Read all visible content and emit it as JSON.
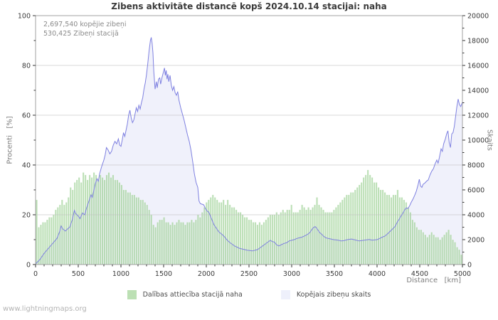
{
  "page": {
    "annotations": [
      "2,697,540 kopējie zibeņi",
      "530,425 Zibeņi stacijā"
    ],
    "footer": "www.lightningmaps.org"
  },
  "colors": {
    "title_text": "#3b3b3b",
    "tick_text": "#3a3a3a",
    "axis_line": "#a0a0a0",
    "grid_line": "#bdbdbd",
    "bar_fill": "rgba(141,201,131,0.60)",
    "bar_edge": "rgba(255,255,255,0.45)",
    "count_fill": "#f0f1fb",
    "count_line": "#7e80e0",
    "legend_bar_swatch": "#bce0b4",
    "legend_count_swatch": "#eef0fb"
  },
  "chart_data": {
    "type": "bar",
    "title": "Zibens aktivitāte distancē kopš 2024.10.14 stacijai: naha",
    "x_axis": {
      "label": "Distance   [km]",
      "min": 0,
      "max": 5000,
      "major_ticks": [
        0,
        500,
        1000,
        1500,
        2000,
        2500,
        3000,
        3500,
        4000,
        4500,
        5000
      ],
      "minor_step": 100
    },
    "y_left": {
      "label": "Procenti   [%]",
      "min": 0,
      "max": 100,
      "major_ticks": [
        0,
        20,
        40,
        60,
        80,
        100
      ],
      "minor_step": 10,
      "gridlines": [
        20,
        40,
        60,
        80
      ]
    },
    "y_right": {
      "label": "Skaits",
      "min": 0,
      "max": 20000,
      "major_ticks": [
        0,
        2000,
        4000,
        6000,
        8000,
        10000,
        12000,
        14000,
        16000,
        18000,
        20000
      ],
      "minor_step": 1000
    },
    "series": [
      {
        "name": "Dalības attiecība stacijā naha",
        "type": "bar",
        "axis": "left",
        "unit": "%",
        "x_start": 0,
        "x_end": 5000,
        "values": [
          26,
          15,
          16,
          17,
          17,
          18,
          19,
          19,
          20,
          22,
          23,
          24,
          26,
          24,
          25,
          27,
          31,
          30,
          33,
          34,
          35,
          33,
          37,
          36,
          34,
          36,
          35,
          37,
          36,
          34,
          36,
          35,
          34,
          36,
          37,
          35,
          36,
          34,
          34,
          33,
          32,
          30,
          30,
          29,
          29,
          28,
          28,
          27,
          27,
          26,
          26,
          25,
          24,
          22,
          20,
          16,
          15,
          17,
          18,
          18,
          19,
          17,
          17,
          16,
          17,
          16,
          17,
          18,
          17,
          17,
          16,
          17,
          17,
          18,
          17,
          18,
          20,
          19,
          21,
          23,
          25,
          26,
          27,
          28,
          27,
          26,
          25,
          25,
          26,
          24,
          26,
          24,
          23,
          23,
          22,
          21,
          21,
          20,
          19,
          19,
          18,
          18,
          17,
          17,
          16,
          17,
          16,
          17,
          18,
          19,
          20,
          20,
          20,
          21,
          20,
          21,
          22,
          21,
          22,
          22,
          24,
          21,
          21,
          21,
          22,
          24,
          23,
          22,
          23,
          22,
          23,
          24,
          27,
          24,
          23,
          22,
          21,
          21,
          21,
          21,
          22,
          23,
          24,
          25,
          26,
          27,
          28,
          28,
          29,
          29,
          30,
          31,
          32,
          33,
          35,
          36,
          38,
          36,
          35,
          33,
          33,
          31,
          30,
          30,
          29,
          28,
          28,
          27,
          28,
          28,
          30,
          27,
          27,
          26,
          25,
          23,
          21,
          18,
          17,
          15,
          14,
          14,
          13,
          12,
          11,
          12,
          13,
          12,
          11,
          11,
          10,
          11,
          12,
          13,
          14,
          12,
          10,
          9,
          7,
          6,
          4
        ]
      },
      {
        "name": "Kopējais zibeņu skaits",
        "type": "area-line",
        "axis": "right",
        "unit": "count",
        "points": [
          [
            0,
            50
          ],
          [
            50,
            400
          ],
          [
            100,
            900
          ],
          [
            150,
            1300
          ],
          [
            200,
            1700
          ],
          [
            250,
            2100
          ],
          [
            280,
            2600
          ],
          [
            300,
            3100
          ],
          [
            320,
            2850
          ],
          [
            350,
            2700
          ],
          [
            380,
            2900
          ],
          [
            400,
            3000
          ],
          [
            430,
            3600
          ],
          [
            455,
            4350
          ],
          [
            470,
            4100
          ],
          [
            500,
            3900
          ],
          [
            520,
            3700
          ],
          [
            550,
            4150
          ],
          [
            575,
            4000
          ],
          [
            600,
            4600
          ],
          [
            625,
            5100
          ],
          [
            650,
            5600
          ],
          [
            665,
            5400
          ],
          [
            700,
            6500
          ],
          [
            720,
            6900
          ],
          [
            735,
            6700
          ],
          [
            750,
            7300
          ],
          [
            775,
            7900
          ],
          [
            800,
            8400
          ],
          [
            815,
            8800
          ],
          [
            830,
            9400
          ],
          [
            850,
            9200
          ],
          [
            870,
            8900
          ],
          [
            890,
            9100
          ],
          [
            910,
            9600
          ],
          [
            930,
            9900
          ],
          [
            950,
            9700
          ],
          [
            970,
            10100
          ],
          [
            985,
            9600
          ],
          [
            1000,
            9500
          ],
          [
            1015,
            10000
          ],
          [
            1030,
            10600
          ],
          [
            1045,
            10300
          ],
          [
            1060,
            10800
          ],
          [
            1075,
            11300
          ],
          [
            1090,
            12000
          ],
          [
            1105,
            12400
          ],
          [
            1120,
            11800
          ],
          [
            1135,
            11400
          ],
          [
            1150,
            11600
          ],
          [
            1165,
            12100
          ],
          [
            1180,
            12600
          ],
          [
            1195,
            12300
          ],
          [
            1210,
            12800
          ],
          [
            1225,
            12500
          ],
          [
            1240,
            13000
          ],
          [
            1255,
            13400
          ],
          [
            1270,
            14100
          ],
          [
            1285,
            14600
          ],
          [
            1300,
            15300
          ],
          [
            1315,
            16200
          ],
          [
            1330,
            17200
          ],
          [
            1345,
            18000
          ],
          [
            1355,
            18250
          ],
          [
            1365,
            17800
          ],
          [
            1375,
            17000
          ],
          [
            1385,
            15500
          ],
          [
            1400,
            14100
          ],
          [
            1415,
            14700
          ],
          [
            1425,
            14200
          ],
          [
            1440,
            14900
          ],
          [
            1455,
            15000
          ],
          [
            1465,
            14500
          ],
          [
            1480,
            15000
          ],
          [
            1495,
            15400
          ],
          [
            1510,
            15800
          ],
          [
            1520,
            15200
          ],
          [
            1530,
            15600
          ],
          [
            1540,
            14900
          ],
          [
            1550,
            15300
          ],
          [
            1560,
            14700
          ],
          [
            1575,
            15200
          ],
          [
            1590,
            14400
          ],
          [
            1605,
            14000
          ],
          [
            1620,
            14300
          ],
          [
            1635,
            13800
          ],
          [
            1650,
            13600
          ],
          [
            1665,
            13900
          ],
          [
            1680,
            13200
          ],
          [
            1700,
            12600
          ],
          [
            1720,
            12100
          ],
          [
            1740,
            11600
          ],
          [
            1760,
            11000
          ],
          [
            1780,
            10400
          ],
          [
            1800,
            9900
          ],
          [
            1820,
            9200
          ],
          [
            1840,
            8300
          ],
          [
            1860,
            7300
          ],
          [
            1880,
            6600
          ],
          [
            1900,
            6200
          ],
          [
            1915,
            5100
          ],
          [
            1930,
            4900
          ],
          [
            1950,
            4850
          ],
          [
            1970,
            4800
          ],
          [
            1990,
            4500
          ],
          [
            2010,
            4300
          ],
          [
            2030,
            4200
          ],
          [
            2060,
            3700
          ],
          [
            2090,
            3200
          ],
          [
            2120,
            2900
          ],
          [
            2150,
            2600
          ],
          [
            2180,
            2450
          ],
          [
            2210,
            2250
          ],
          [
            2240,
            2000
          ],
          [
            2270,
            1800
          ],
          [
            2300,
            1650
          ],
          [
            2330,
            1500
          ],
          [
            2360,
            1400
          ],
          [
            2390,
            1300
          ],
          [
            2420,
            1250
          ],
          [
            2450,
            1200
          ],
          [
            2480,
            1150
          ],
          [
            2510,
            1130
          ],
          [
            2540,
            1100
          ],
          [
            2570,
            1150
          ],
          [
            2600,
            1200
          ],
          [
            2630,
            1350
          ],
          [
            2660,
            1500
          ],
          [
            2690,
            1650
          ],
          [
            2720,
            1800
          ],
          [
            2750,
            1950
          ],
          [
            2770,
            1850
          ],
          [
            2800,
            1800
          ],
          [
            2820,
            1600
          ],
          [
            2850,
            1500
          ],
          [
            2880,
            1600
          ],
          [
            2910,
            1700
          ],
          [
            2940,
            1750
          ],
          [
            2970,
            1900
          ],
          [
            3000,
            1950
          ],
          [
            3030,
            2000
          ],
          [
            3060,
            2100
          ],
          [
            3090,
            2150
          ],
          [
            3120,
            2200
          ],
          [
            3150,
            2300
          ],
          [
            3180,
            2400
          ],
          [
            3210,
            2550
          ],
          [
            3240,
            2850
          ],
          [
            3260,
            3000
          ],
          [
            3275,
            3050
          ],
          [
            3290,
            2950
          ],
          [
            3310,
            2750
          ],
          [
            3330,
            2550
          ],
          [
            3350,
            2450
          ],
          [
            3370,
            2300
          ],
          [
            3400,
            2150
          ],
          [
            3430,
            2100
          ],
          [
            3460,
            2050
          ],
          [
            3490,
            2000
          ],
          [
            3520,
            1980
          ],
          [
            3550,
            1950
          ],
          [
            3580,
            1900
          ],
          [
            3610,
            1920
          ],
          [
            3640,
            1980
          ],
          [
            3670,
            2020
          ],
          [
            3700,
            2050
          ],
          [
            3730,
            2000
          ],
          [
            3760,
            1950
          ],
          [
            3790,
            1900
          ],
          [
            3820,
            1930
          ],
          [
            3850,
            1960
          ],
          [
            3880,
            1990
          ],
          [
            3910,
            2010
          ],
          [
            3940,
            1960
          ],
          [
            3970,
            1980
          ],
          [
            4000,
            2000
          ],
          [
            4030,
            2100
          ],
          [
            4060,
            2200
          ],
          [
            4090,
            2280
          ],
          [
            4120,
            2450
          ],
          [
            4150,
            2650
          ],
          [
            4180,
            2850
          ],
          [
            4210,
            3050
          ],
          [
            4240,
            3450
          ],
          [
            4260,
            3650
          ],
          [
            4280,
            3900
          ],
          [
            4300,
            4100
          ],
          [
            4320,
            4350
          ],
          [
            4340,
            4550
          ],
          [
            4360,
            4500
          ],
          [
            4380,
            4700
          ],
          [
            4400,
            5000
          ],
          [
            4420,
            5250
          ],
          [
            4440,
            5550
          ],
          [
            4460,
            5900
          ],
          [
            4480,
            6400
          ],
          [
            4495,
            6850
          ],
          [
            4510,
            6300
          ],
          [
            4525,
            6200
          ],
          [
            4540,
            6450
          ],
          [
            4560,
            6550
          ],
          [
            4580,
            6700
          ],
          [
            4600,
            6800
          ],
          [
            4620,
            7200
          ],
          [
            4640,
            7500
          ],
          [
            4660,
            7700
          ],
          [
            4680,
            8100
          ],
          [
            4700,
            8400
          ],
          [
            4715,
            8150
          ],
          [
            4730,
            8600
          ],
          [
            4750,
            9300
          ],
          [
            4765,
            9100
          ],
          [
            4780,
            9700
          ],
          [
            4800,
            10100
          ],
          [
            4815,
            10500
          ],
          [
            4830,
            10750
          ],
          [
            4845,
            9800
          ],
          [
            4860,
            9400
          ],
          [
            4875,
            10500
          ],
          [
            4890,
            10600
          ],
          [
            4905,
            11100
          ],
          [
            4920,
            11900
          ],
          [
            4935,
            12700
          ],
          [
            4950,
            13300
          ],
          [
            4965,
            12850
          ],
          [
            4980,
            12700
          ],
          [
            5000,
            13050
          ]
        ]
      }
    ],
    "legend_position": "bottom"
  }
}
